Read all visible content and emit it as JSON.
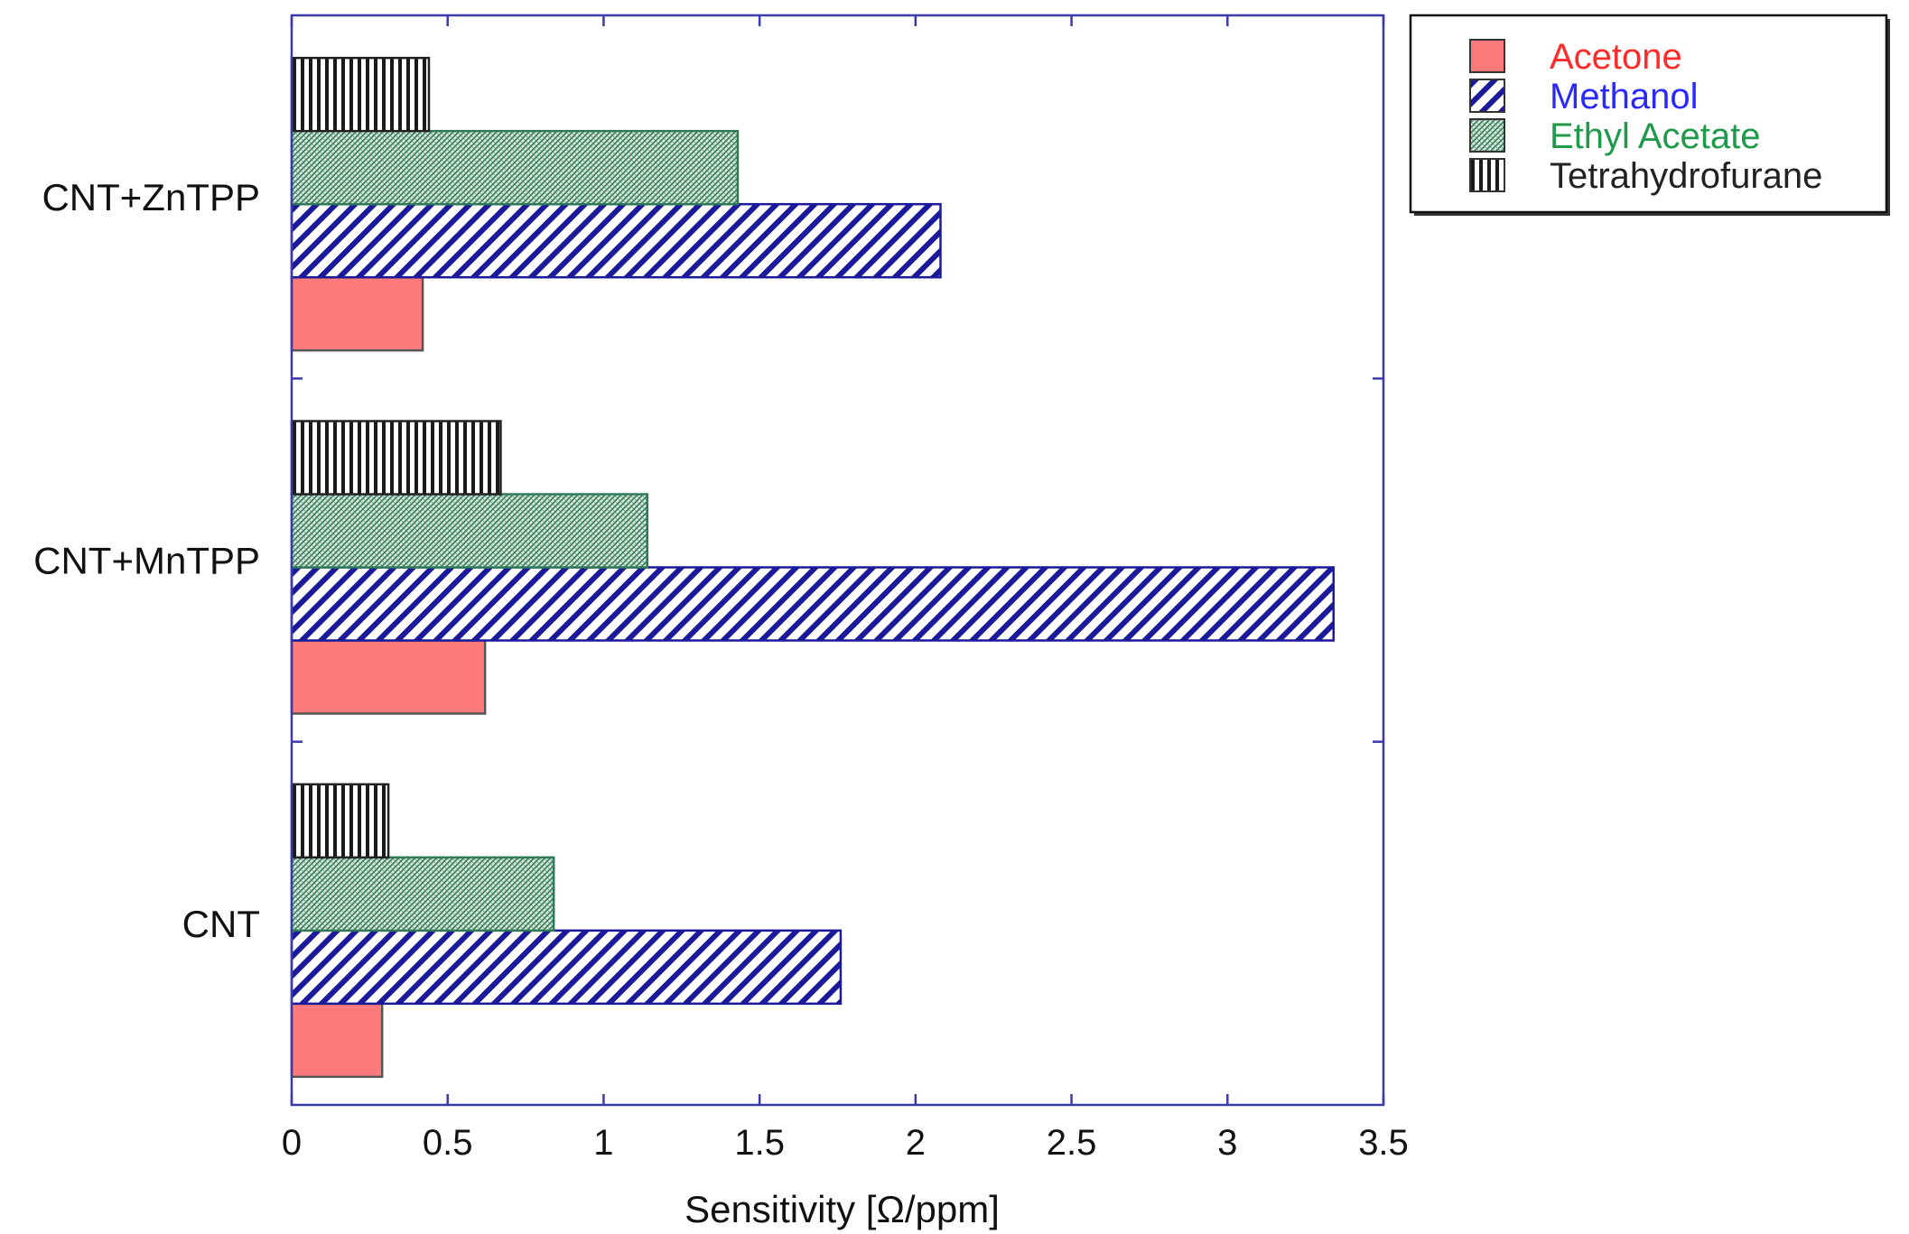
{
  "chart_data": {
    "type": "bar",
    "orientation": "horizontal",
    "title": "",
    "xlabel": "Sensitivity [Ω/ppm]",
    "ylabel": "",
    "xlim": [
      0,
      3.5
    ],
    "xticks": [
      "0",
      "0.5",
      "1",
      "1.5",
      "2",
      "2.5",
      "3",
      "3.5"
    ],
    "categories": [
      "CNT+ZnTPP",
      "CNT+MnTPP",
      "CNT"
    ],
    "series": [
      {
        "name": "Acetone",
        "color": "#ff7b7b",
        "text_color": "#ff2a2a",
        "pattern": "solid",
        "values": [
          0.42,
          0.62,
          0.29
        ]
      },
      {
        "name": "Methanol",
        "color": "#1a1a9a",
        "text_color": "#2a2aff",
        "pattern": "diagonal-hatch",
        "values": [
          2.08,
          3.34,
          1.76
        ]
      },
      {
        "name": "Ethyl Acetate",
        "color": "#2f7a56",
        "text_color": "#1f9a4a",
        "pattern": "fine-crosshatch",
        "values": [
          1.43,
          1.14,
          0.84
        ]
      },
      {
        "name": "Tetrahydrofurane",
        "color": "#222222",
        "text_color": "#222222",
        "pattern": "vertical-lines",
        "values": [
          0.44,
          0.67,
          0.31
        ]
      }
    ],
    "legend_position": "top-right-outside",
    "grid": false
  }
}
